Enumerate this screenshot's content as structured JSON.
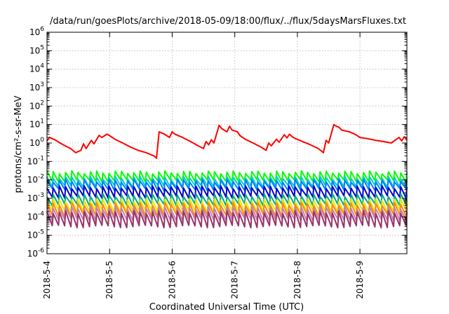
{
  "chart_data": {
    "type": "line",
    "title": "/data/run/goesPlots/archive/2018-05-09/18:00/flux/../flux/5daysMarsFluxes.txt",
    "xlabel": "Coordinated Universal Time (UTC)",
    "ylabel": "protons/cm²-s-sr-MeV",
    "y_scale": "log",
    "ylim": [
      1e-06,
      1000000.0
    ],
    "y_ticks": [
      {
        "exp": -6,
        "label": "10-6"
      },
      {
        "exp": -5,
        "label": "10-5"
      },
      {
        "exp": -4,
        "label": "10-4"
      },
      {
        "exp": -3,
        "label": "10-3"
      },
      {
        "exp": -2,
        "label": "10-2"
      },
      {
        "exp": -1,
        "label": "10-1"
      },
      {
        "exp": 0,
        "label": "100"
      },
      {
        "exp": 1,
        "label": "101"
      },
      {
        "exp": 2,
        "label": "102"
      },
      {
        "exp": 3,
        "label": "103"
      },
      {
        "exp": 4,
        "label": "104"
      },
      {
        "exp": 5,
        "label": "105"
      },
      {
        "exp": 6,
        "label": "106"
      }
    ],
    "xlim": [
      "2018-05-04T00:00",
      "2018-05-09T18:00"
    ],
    "x_ticks": [
      "2018-5-4",
      "2018-5-5",
      "2018-5-6",
      "2018-5-7",
      "2018-5-8",
      "2018-5-9"
    ],
    "grid": true,
    "series": [
      {
        "color": "#ff0000",
        "x": [
          "2018-05-04T00:00",
          "2018-05-04T01:00",
          "2018-05-04T03:00",
          "2018-05-04T05:00",
          "2018-05-04T07:00",
          "2018-05-04T09:00",
          "2018-05-04T11:00",
          "2018-05-04T13:00",
          "2018-05-04T14:00",
          "2018-05-04T15:00",
          "2018-05-04T17:00",
          "2018-05-04T18:00",
          "2018-05-04T20:00",
          "2018-05-04T21:00",
          "2018-05-04T23:00",
          "2018-05-05T00:00",
          "2018-05-05T02:00",
          "2018-05-05T05:00",
          "2018-05-05T08:00",
          "2018-05-05T11:00",
          "2018-05-05T14:00",
          "2018-05-05T17:00",
          "2018-05-05T18:00",
          "2018-05-05T19:00",
          "2018-05-05T21:00",
          "2018-05-05T23:00",
          "2018-05-06T00:00",
          "2018-05-06T01:00",
          "2018-05-06T04:00",
          "2018-05-06T07:00",
          "2018-05-06T10:00",
          "2018-05-06T12:00",
          "2018-05-06T13:00",
          "2018-05-06T14:00",
          "2018-05-06T15:00",
          "2018-05-06T16:00",
          "2018-05-06T18:00",
          "2018-05-06T19:00",
          "2018-05-06T21:00",
          "2018-05-06T22:00",
          "2018-05-06T23:00",
          "2018-05-07T01:00",
          "2018-05-07T02:00",
          "2018-05-07T04:00",
          "2018-05-07T07:00",
          "2018-05-07T10:00",
          "2018-05-07T12:00",
          "2018-05-07T13:00",
          "2018-05-07T14:00",
          "2018-05-07T16:00",
          "2018-05-07T17:00",
          "2018-05-07T19:00",
          "2018-05-07T20:00",
          "2018-05-07T21:00",
          "2018-05-07T22:00",
          "2018-05-07T23:00",
          "2018-05-08T02:00",
          "2018-05-08T05:00",
          "2018-05-08T08:00",
          "2018-05-08T10:00",
          "2018-05-08T11:00",
          "2018-05-08T12:00",
          "2018-05-08T14:00",
          "2018-05-08T15:00",
          "2018-05-08T16:00",
          "2018-05-08T17:00",
          "2018-05-08T20:00",
          "2018-05-08T22:00",
          "2018-05-09T00:00",
          "2018-05-09T03:00",
          "2018-05-09T06:00",
          "2018-05-09T09:00",
          "2018-05-09T12:00",
          "2018-05-09T15:00",
          "2018-05-09T16:00",
          "2018-05-09T17:00",
          "2018-05-09T18:00"
        ],
        "y": [
          1.3,
          2.0,
          1.5,
          1.0,
          0.7,
          0.5,
          0.3,
          0.4,
          0.9,
          0.5,
          1.4,
          0.9,
          2.6,
          2.0,
          3.0,
          2.5,
          1.6,
          1.0,
          0.6,
          0.4,
          0.3,
          0.2,
          0.15,
          4.0,
          3.0,
          2.0,
          4.0,
          3.0,
          2.0,
          1.2,
          0.7,
          0.5,
          1.2,
          0.8,
          1.5,
          1.0,
          9.0,
          6.0,
          4.0,
          8.0,
          5.0,
          4.0,
          2.5,
          1.6,
          1.0,
          0.6,
          0.4,
          1.0,
          0.7,
          1.6,
          1.1,
          2.8,
          1.9,
          3.0,
          2.2,
          1.8,
          1.2,
          0.8,
          0.5,
          0.3,
          1.4,
          1.0,
          10.0,
          8.0,
          7.0,
          5.0,
          4.0,
          3.0,
          2.0,
          1.7,
          1.4,
          1.2,
          1.0,
          2.0,
          1.3,
          2.2,
          1.4
        ]
      },
      {
        "color": "#00ff00",
        "base": 0.026,
        "trough": 0.009
      },
      {
        "color": "#00cccc",
        "base": 0.013,
        "trough": 0.0045
      },
      {
        "color": "#0080ff",
        "base": 0.009,
        "trough": 0.003
      },
      {
        "color": "#0000cc",
        "base": 0.004,
        "trough": 0.0012
      },
      {
        "color": "#00aa88",
        "base": 0.0015,
        "trough": 0.00045
      },
      {
        "color": "#e8e800",
        "base": 0.0008,
        "trough": 0.0002
      },
      {
        "color": "#ff8800",
        "base": 0.0005,
        "trough": 0.00012
      },
      {
        "color": "#c080c0",
        "base": 0.0003,
        "trough": 7e-05
      },
      {
        "color": "#993366",
        "base": 0.00018,
        "trough": 3e-05
      }
    ]
  }
}
